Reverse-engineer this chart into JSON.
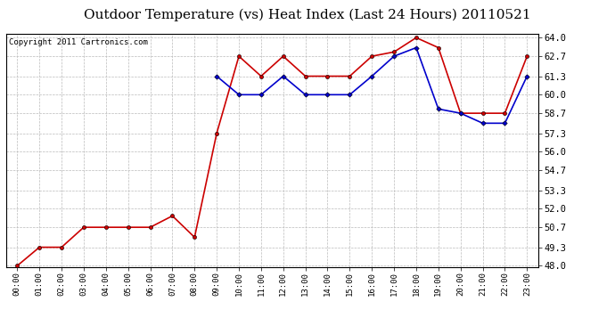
{
  "title": "Outdoor Temperature (vs) Heat Index (Last 24 Hours) 20110521",
  "copyright": "Copyright 2011 Cartronics.com",
  "x_labels": [
    "00:00",
    "01:00",
    "02:00",
    "03:00",
    "04:00",
    "05:00",
    "06:00",
    "07:00",
    "08:00",
    "09:00",
    "10:00",
    "11:00",
    "12:00",
    "13:00",
    "14:00",
    "15:00",
    "16:00",
    "17:00",
    "18:00",
    "19:00",
    "20:00",
    "21:00",
    "22:00",
    "23:00"
  ],
  "temp_red": [
    48.0,
    49.3,
    49.3,
    50.7,
    50.7,
    50.7,
    50.7,
    51.5,
    50.0,
    57.3,
    62.7,
    61.3,
    62.7,
    61.3,
    61.3,
    61.3,
    62.7,
    63.0,
    64.0,
    63.3,
    58.7,
    58.7,
    58.7,
    62.7
  ],
  "temp_blue": [
    null,
    null,
    null,
    null,
    null,
    null,
    null,
    null,
    null,
    61.3,
    60.0,
    60.0,
    61.3,
    60.0,
    60.0,
    60.0,
    61.3,
    62.7,
    63.3,
    59.0,
    58.7,
    58.0,
    58.0,
    61.3
  ],
  "y_ticks": [
    48.0,
    49.3,
    50.7,
    52.0,
    53.3,
    54.7,
    56.0,
    57.3,
    58.7,
    60.0,
    61.3,
    62.7,
    64.0
  ],
  "y_min": 48.0,
  "y_max": 64.0,
  "red_color": "#cc0000",
  "blue_color": "#0000cc",
  "bg_color": "#ffffff",
  "grid_color": "#bbbbbb",
  "title_fontsize": 11,
  "copyright_fontsize": 6.5
}
